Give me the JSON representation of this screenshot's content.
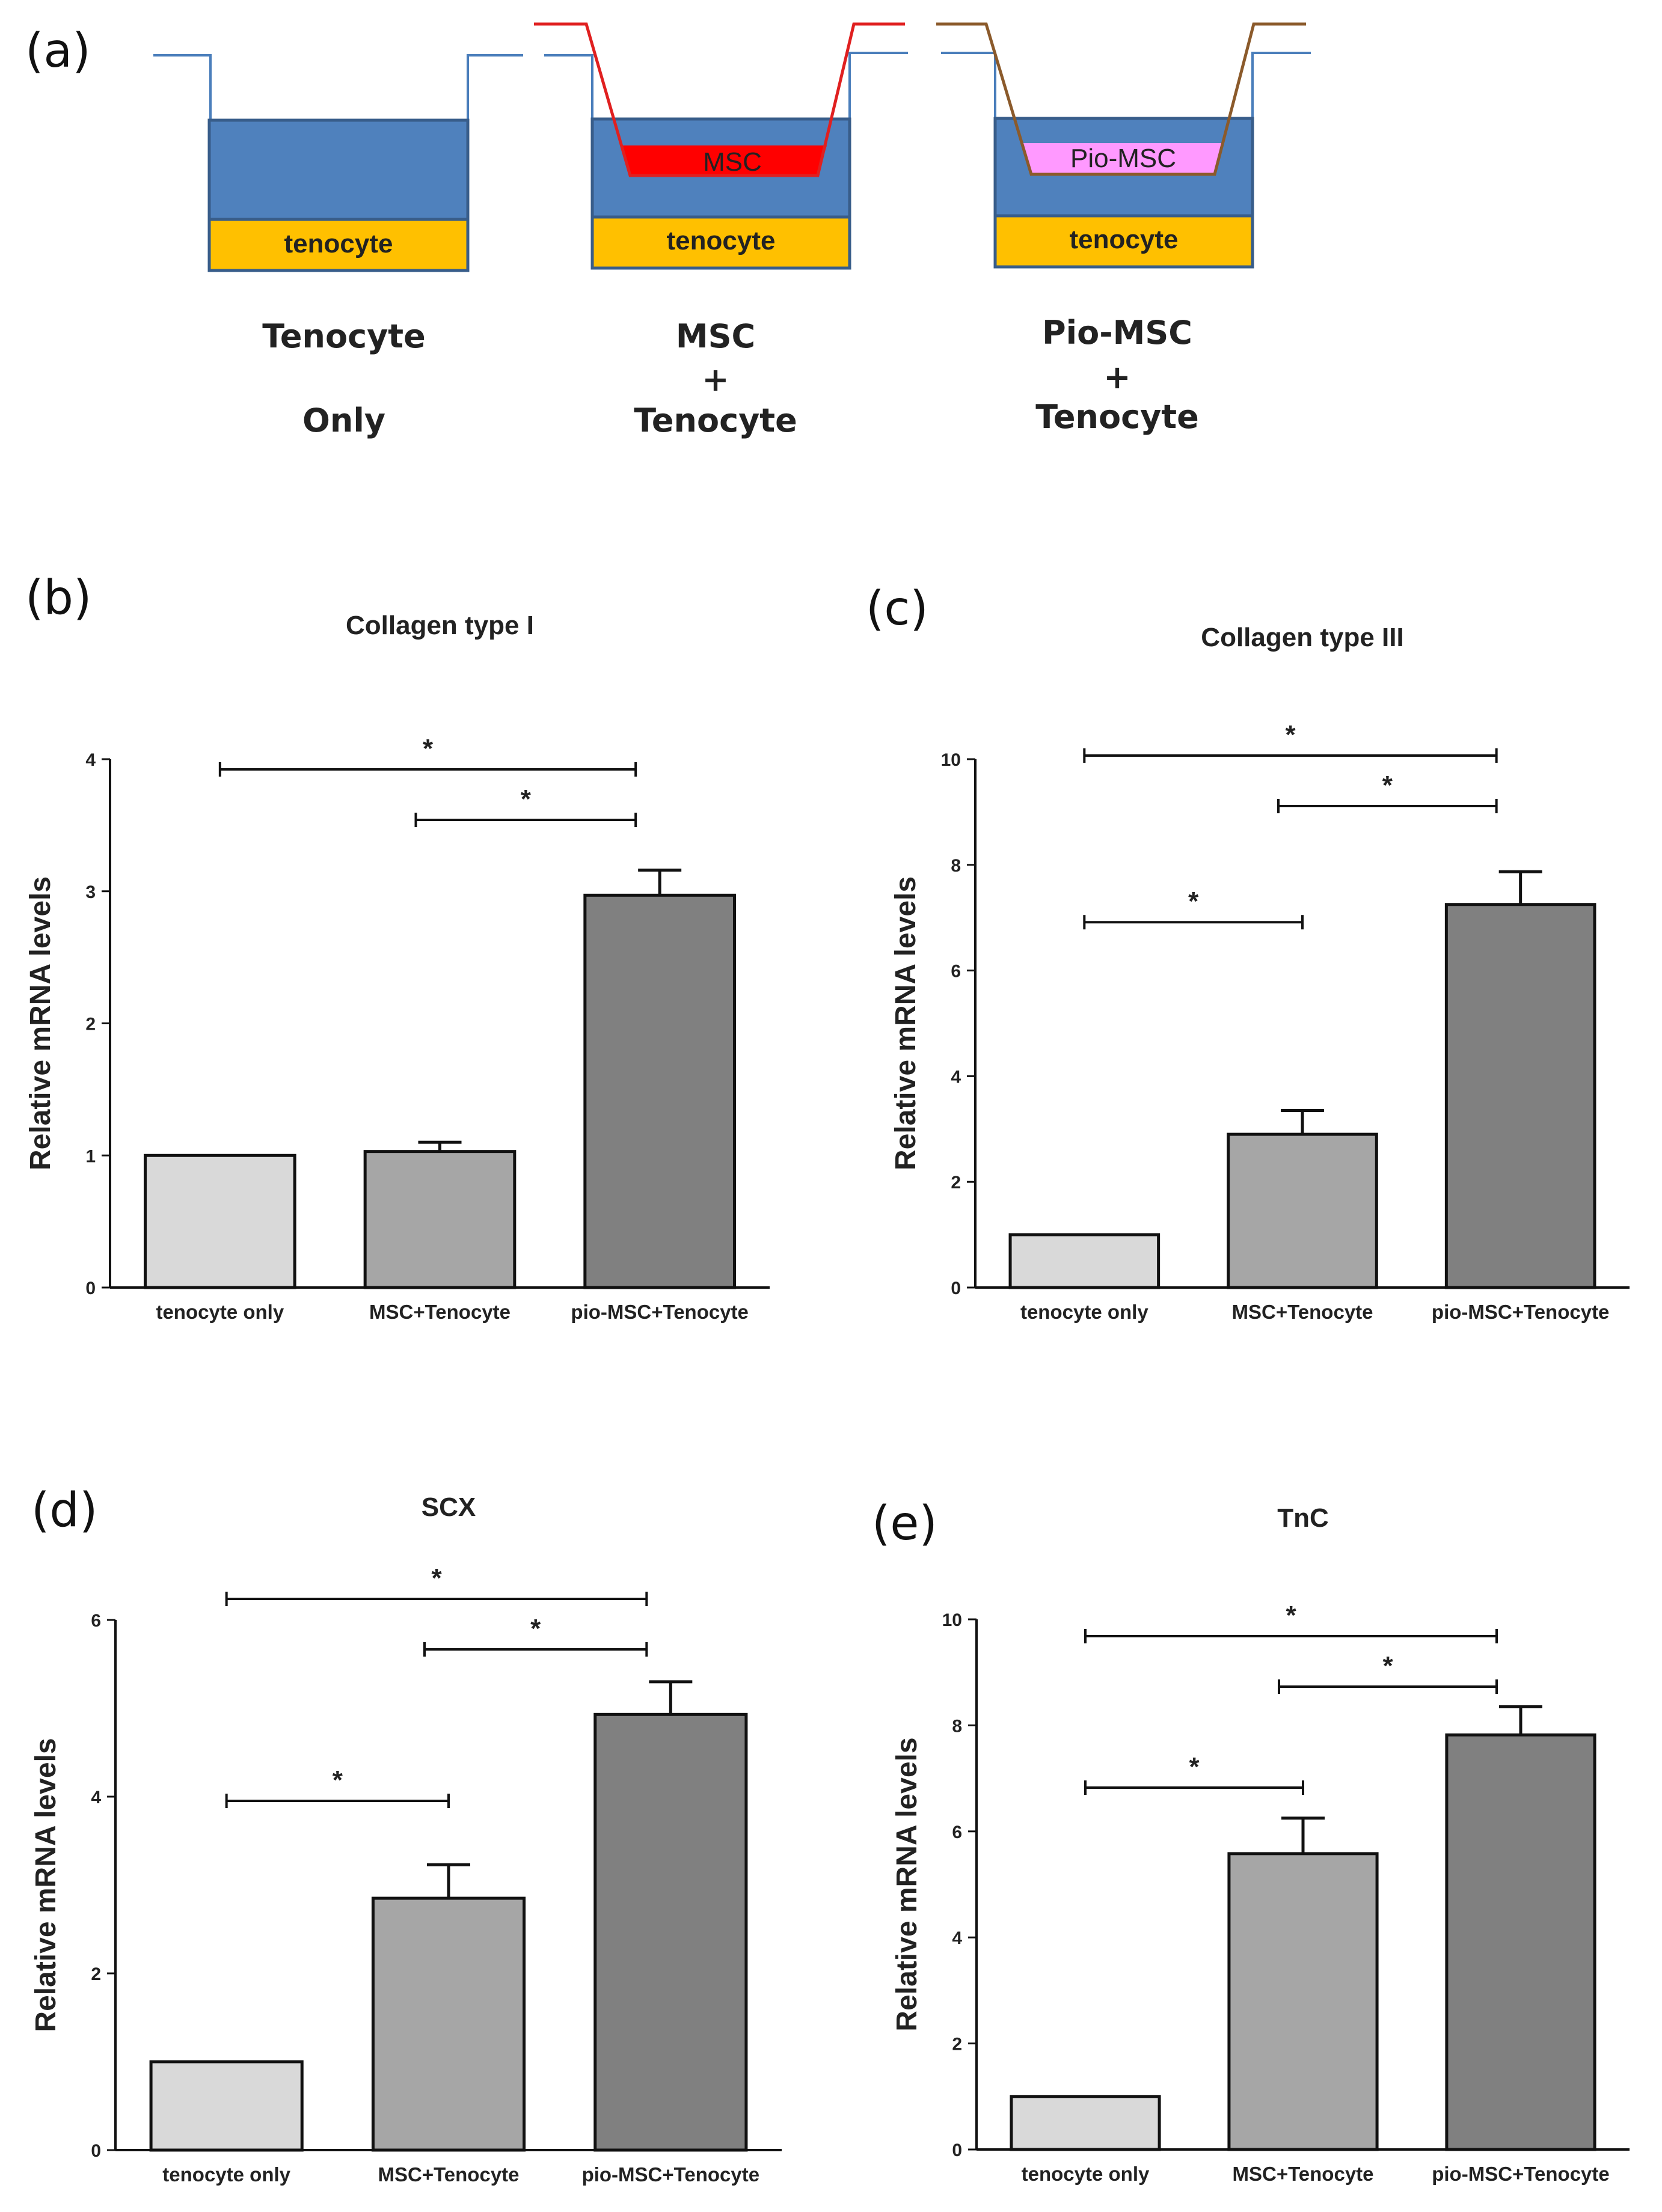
{
  "panel_labels": {
    "a": "(a)",
    "b": "(b)",
    "c": "(c)",
    "d": "(d)",
    "e": "(e)"
  },
  "diagram": {
    "colors": {
      "medium": "#4f81bd",
      "tenocyte_layer": "#ffc000",
      "msc": "#ff0000",
      "pio_msc": "#ff99ff",
      "line": "#4a7ebb",
      "insert_msc": "#e02020",
      "insert_pio": "#8b5a2b"
    },
    "wells": [
      {
        "layer_label": "tenocyte",
        "caption": [
          "Tenocyte",
          "Only"
        ]
      },
      {
        "layer_label": "tenocyte",
        "insert_label": "MSC",
        "caption": [
          "MSC",
          "+",
          "Tenocyte"
        ]
      },
      {
        "layer_label": "tenocyte",
        "insert_label": "Pio-MSC",
        "caption": [
          "Pio-MSC",
          "+",
          "Tenocyte"
        ]
      }
    ]
  },
  "chart_data": [
    {
      "panel": "(b)",
      "type": "bar",
      "title": "Collagen type I",
      "xlabel": "",
      "ylabel": "Relative mRNA levels",
      "categories": [
        "tenocyte only",
        "MSC+Tenocyte",
        "pio-MSC+Tenocyte"
      ],
      "values": [
        1.0,
        1.03,
        2.97
      ],
      "errors": [
        0,
        0.07,
        0.19
      ],
      "ylim": [
        0,
        4
      ],
      "yticks": [
        "0",
        "1",
        "2",
        "3",
        "4"
      ],
      "bar_colors": [
        "#d9d9d9",
        "#a6a6a6",
        "#808080"
      ],
      "significance": [
        {
          "from": 0,
          "to": 2,
          "label": "*",
          "level": 0.0
        },
        {
          "from": 1,
          "to": 2,
          "label": "*",
          "level": 1.0
        }
      ]
    },
    {
      "panel": "(c)",
      "type": "bar",
      "title": "Collagen type III",
      "xlabel": "",
      "ylabel": "Relative mRNA levels",
      "categories": [
        "tenocyte only",
        "MSC+Tenocyte",
        "pio-MSC+Tenocyte"
      ],
      "values": [
        1.0,
        2.9,
        7.25
      ],
      "errors": [
        0,
        0.45,
        0.62
      ],
      "ylim": [
        0,
        10
      ],
      "yticks": [
        "0",
        "2",
        "4",
        "6",
        "8",
        "10"
      ],
      "bar_colors": [
        "#d9d9d9",
        "#a6a6a6",
        "#808080"
      ],
      "significance": [
        {
          "from": 0,
          "to": 2,
          "label": "*",
          "level": 0.0
        },
        {
          "from": 1,
          "to": 2,
          "label": "*",
          "level": 1.0
        },
        {
          "from": 0,
          "to": 1,
          "label": "*",
          "level": 3.3
        }
      ]
    },
    {
      "panel": "(d)",
      "type": "bar",
      "title": "SCX",
      "xlabel": "",
      "ylabel": "Relative mRNA levels",
      "categories": [
        "tenocyte only",
        "MSC+Tenocyte",
        "pio-MSC+Tenocyte"
      ],
      "values": [
        1.0,
        2.85,
        4.93
      ],
      "errors": [
        0,
        0.38,
        0.37
      ],
      "ylim": [
        0,
        6
      ],
      "yticks": [
        "0",
        "2",
        "4",
        "6"
      ],
      "bar_colors": [
        "#d9d9d9",
        "#a6a6a6",
        "#808080"
      ],
      "significance": [
        {
          "from": 0,
          "to": 2,
          "label": "*",
          "level": 0.0
        },
        {
          "from": 1,
          "to": 2,
          "label": "*",
          "level": 1.0
        },
        {
          "from": 0,
          "to": 1,
          "label": "*",
          "level": 4.0
        }
      ]
    },
    {
      "panel": "(e)",
      "type": "bar",
      "title": "TnC",
      "xlabel": "",
      "ylabel": "Relative mRNA levels",
      "categories": [
        "tenocyte only",
        "MSC+Tenocyte",
        "pio-MSC+Tenocyte"
      ],
      "values": [
        1.0,
        5.58,
        7.82
      ],
      "errors": [
        0,
        0.67,
        0.53
      ],
      "ylim": [
        0,
        10
      ],
      "yticks": [
        "0",
        "2",
        "4",
        "6",
        "8",
        "10"
      ],
      "bar_colors": [
        "#d9d9d9",
        "#a6a6a6",
        "#808080"
      ],
      "significance": [
        {
          "from": 0,
          "to": 2,
          "label": "*",
          "level": 0.0
        },
        {
          "from": 1,
          "to": 2,
          "label": "*",
          "level": 1.0
        },
        {
          "from": 0,
          "to": 1,
          "label": "*",
          "level": 3.0
        }
      ]
    }
  ]
}
